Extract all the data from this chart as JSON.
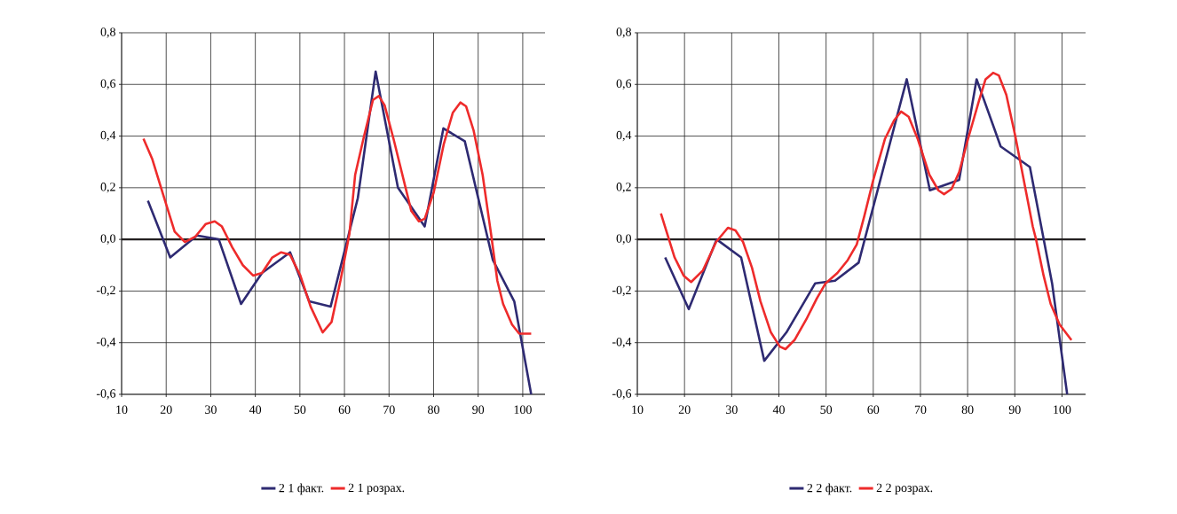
{
  "chart_data": [
    {
      "type": "line",
      "grid": true,
      "legend": "bottom",
      "xlim": [
        10,
        105
      ],
      "ylim": [
        -0.6,
        0.8
      ],
      "xticks": [
        10,
        20,
        30,
        40,
        50,
        60,
        70,
        80,
        90,
        100
      ],
      "yticks": [
        {
          "value": -0.6,
          "label": "-0,6"
        },
        {
          "value": -0.4,
          "label": "-0,4"
        },
        {
          "value": -0.2,
          "label": "-0,2"
        },
        {
          "value": 0,
          "label": "0,0"
        },
        {
          "value": 0.2,
          "label": "0,2"
        },
        {
          "value": 0.4,
          "label": "0,4"
        },
        {
          "value": 0.6,
          "label": "0,6"
        },
        {
          "value": 0.8,
          "label": "0,8"
        }
      ],
      "ref_lines": [
        {
          "axis": "y",
          "value": 0,
          "color": "#231f20"
        }
      ],
      "series": [
        {
          "name": "2 1 факт.",
          "color": "#2e2a72",
          "x": [
            15.9,
            20.9,
            26.9,
            31.8,
            36.8,
            41.5,
            47.8,
            52.1,
            56.9,
            63.0,
            67.0,
            72.0,
            78.0,
            82.2,
            87.0,
            93.3,
            98.1,
            101.9
          ],
          "values": [
            0.15,
            -0.07,
            0.015,
            0.0,
            -0.25,
            -0.13,
            -0.05,
            -0.24,
            -0.26,
            0.16,
            0.65,
            0.2,
            0.05,
            0.43,
            0.38,
            -0.08,
            -0.24,
            -0.6
          ]
        },
        {
          "name": "2 1 розрах.",
          "color": "#ee2b2b",
          "x": [
            14.9,
            16.9,
            19.2,
            21.9,
            24.2,
            26.5,
            28.9,
            30.9,
            32.5,
            34.8,
            37.2,
            39.5,
            41.5,
            43.8,
            45.8,
            47.8,
            50.1,
            52.4,
            55.1,
            57.1,
            59.1,
            61.1,
            62.4,
            64.4,
            66.4,
            67.7,
            69.0,
            71.0,
            73.0,
            75.0,
            76.7,
            78.0,
            80.0,
            82.3,
            84.3,
            86.0,
            87.3,
            89.0,
            91.0,
            92.9,
            94.3,
            95.6,
            97.6,
            99.2,
            101.9
          ],
          "values": [
            0.39,
            0.31,
            0.18,
            0.03,
            -0.01,
            0.01,
            0.06,
            0.07,
            0.05,
            -0.03,
            -0.1,
            -0.14,
            -0.13,
            -0.07,
            -0.05,
            -0.06,
            -0.14,
            -0.26,
            -0.36,
            -0.32,
            -0.16,
            0.02,
            0.25,
            0.4,
            0.54,
            0.555,
            0.52,
            0.39,
            0.25,
            0.11,
            0.07,
            0.08,
            0.18,
            0.37,
            0.49,
            0.53,
            0.515,
            0.42,
            0.25,
            0.02,
            -0.16,
            -0.25,
            -0.33,
            -0.365,
            -0.365
          ]
        }
      ]
    },
    {
      "type": "line",
      "grid": true,
      "legend": "bottom",
      "xlim": [
        10,
        105
      ],
      "ylim": [
        -0.6,
        0.8
      ],
      "xticks": [
        10,
        20,
        30,
        40,
        50,
        60,
        70,
        80,
        90,
        100
      ],
      "yticks": [
        {
          "value": -0.6,
          "label": "-0,6"
        },
        {
          "value": -0.4,
          "label": "-0,4"
        },
        {
          "value": -0.2,
          "label": "-0,2"
        },
        {
          "value": 0,
          "label": "0,0"
        },
        {
          "value": 0.2,
          "label": "0,2"
        },
        {
          "value": 0.4,
          "label": "0,4"
        },
        {
          "value": 0.6,
          "label": "0,6"
        },
        {
          "value": 0.8,
          "label": "0,8"
        }
      ],
      "ref_lines": [
        {
          "axis": "y",
          "value": 0,
          "color": "#231f20"
        }
      ],
      "series": [
        {
          "name": "2 2 факт.",
          "color": "#2e2a72",
          "x": [
            15.9,
            20.9,
            26.8,
            32.0,
            36.9,
            41.6,
            47.7,
            51.9,
            56.9,
            67.1,
            72.0,
            78.2,
            81.9,
            87.0,
            93.2,
            97.9,
            101.1
          ],
          "values": [
            -0.07,
            -0.27,
            0.0,
            -0.07,
            -0.47,
            -0.36,
            -0.17,
            -0.16,
            -0.09,
            0.62,
            0.19,
            0.23,
            0.62,
            0.36,
            0.28,
            -0.17,
            -0.6
          ]
        },
        {
          "name": "2 2 розрах.",
          "color": "#ee2b2b",
          "x": [
            15.0,
            17.9,
            19.8,
            21.4,
            23.9,
            26.7,
            29.2,
            30.8,
            32.4,
            34.3,
            36.1,
            38.3,
            40.2,
            41.4,
            43.3,
            45.8,
            48.0,
            49.9,
            52.4,
            54.6,
            56.5,
            58.1,
            60.0,
            62.5,
            64.4,
            65.9,
            67.5,
            69.4,
            71.9,
            73.8,
            75.0,
            76.6,
            78.2,
            80.1,
            82.3,
            83.8,
            85.4,
            86.6,
            88.2,
            90.1,
            92.0,
            93.8,
            94.5,
            96.1,
            97.6,
            99.5,
            102.0
          ],
          "values": [
            0.1,
            -0.07,
            -0.14,
            -0.165,
            -0.12,
            -0.01,
            0.045,
            0.035,
            -0.01,
            -0.11,
            -0.24,
            -0.36,
            -0.415,
            -0.425,
            -0.39,
            -0.31,
            -0.23,
            -0.17,
            -0.13,
            -0.08,
            -0.02,
            0.09,
            0.23,
            0.39,
            0.46,
            0.495,
            0.475,
            0.39,
            0.25,
            0.19,
            0.175,
            0.195,
            0.26,
            0.39,
            0.53,
            0.62,
            0.645,
            0.635,
            0.56,
            0.4,
            0.22,
            0.05,
            0.0,
            -0.14,
            -0.25,
            -0.33,
            -0.39
          ]
        }
      ]
    }
  ]
}
